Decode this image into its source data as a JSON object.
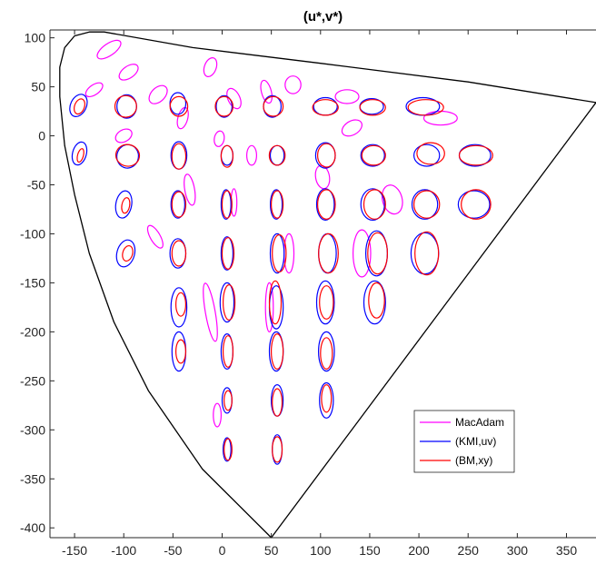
{
  "chart_data": {
    "type": "scatter",
    "title": "(u*,v*)",
    "xlabel": "",
    "ylabel": "",
    "xlim": [
      -175,
      380
    ],
    "ylim": [
      -410,
      108
    ],
    "xticks": [
      -150,
      -100,
      -50,
      0,
      50,
      100,
      150,
      200,
      250,
      300,
      350
    ],
    "yticks": [
      100,
      50,
      0,
      -50,
      -100,
      -150,
      -200,
      -250,
      -300,
      -350,
      -400
    ],
    "grid": false,
    "legend": {
      "placement": "bottom-right",
      "entries": [
        "MacAdam",
        "(KMI,uv)",
        "(BM,xy)"
      ]
    },
    "colors": {
      "MacAdam": "#ff00ff",
      "(KMI,uv)": "#0000ff",
      "(BM,xy)": "#ff0000",
      "boundary": "#000000"
    },
    "boundary": [
      [
        50,
        -410
      ],
      [
        -20,
        -340
      ],
      [
        -75,
        -260
      ],
      [
        -110,
        -190
      ],
      [
        -135,
        -120
      ],
      [
        -150,
        -60
      ],
      [
        -160,
        -10
      ],
      [
        -165,
        40
      ],
      [
        -165,
        70
      ],
      [
        -160,
        90
      ],
      [
        -150,
        102
      ],
      [
        -135,
        106
      ],
      [
        -120,
        106
      ],
      [
        -30,
        90
      ],
      [
        100,
        74
      ],
      [
        250,
        55
      ],
      [
        380,
        34
      ],
      [
        50,
        -410
      ]
    ],
    "series": [
      {
        "name": "MacAdam",
        "ellipses": [
          [
            -115,
            88,
            14,
            6,
            35
          ],
          [
            -95,
            65,
            11,
            6,
            35
          ],
          [
            -130,
            47,
            10,
            5,
            35
          ],
          [
            -65,
            42,
            11,
            7,
            45
          ],
          [
            -40,
            18,
            5,
            11,
            -15
          ],
          [
            -12,
            70,
            6,
            10,
            -20
          ],
          [
            12,
            38,
            6,
            11,
            25
          ],
          [
            45,
            45,
            5,
            12,
            15
          ],
          [
            72,
            52,
            8,
            9,
            0
          ],
          [
            127,
            40,
            12,
            7,
            0
          ],
          [
            132,
            8,
            11,
            7,
            30
          ],
          [
            222,
            18,
            17,
            7,
            0
          ],
          [
            -100,
            0,
            9,
            6,
            30
          ],
          [
            -3,
            -3,
            5,
            8,
            -10
          ],
          [
            30,
            -20,
            5,
            10,
            0
          ],
          [
            102,
            -42,
            7,
            12,
            10
          ],
          [
            173,
            -65,
            10,
            15,
            15
          ],
          [
            -33,
            -55,
            5,
            16,
            10
          ],
          [
            -68,
            -103,
            5,
            13,
            30
          ],
          [
            12,
            -68,
            3,
            14,
            0
          ],
          [
            68,
            -120,
            5,
            20,
            0
          ],
          [
            142,
            -120,
            9,
            24,
            0
          ],
          [
            -12,
            -180,
            5,
            30,
            10
          ],
          [
            48,
            -175,
            4,
            25,
            0
          ],
          [
            -5,
            -285,
            4,
            12,
            0
          ]
        ]
      },
      {
        "name": "(KMI,uv)",
        "ellipses": [
          [
            -146,
            31,
            8,
            12,
            -25
          ],
          [
            -145,
            -18,
            7,
            12,
            -15
          ],
          [
            -97,
            30,
            10,
            12,
            0
          ],
          [
            -96,
            -21,
            11,
            12,
            -10
          ],
          [
            -45,
            33,
            8,
            11,
            0
          ],
          [
            -44,
            -20,
            8,
            14,
            0
          ],
          [
            2,
            30,
            8,
            11,
            0
          ],
          [
            5,
            -20,
            6,
            10,
            0
          ],
          [
            51,
            30,
            9,
            11,
            0
          ],
          [
            56,
            -20,
            7,
            10,
            0
          ],
          [
            105,
            30,
            12,
            9,
            0
          ],
          [
            105,
            -20,
            10,
            13,
            0
          ],
          [
            152,
            30,
            12,
            8,
            0
          ],
          [
            153,
            -20,
            12,
            11,
            0
          ],
          [
            204,
            30,
            17,
            9,
            0
          ],
          [
            208,
            -20,
            13,
            11,
            0
          ],
          [
            257,
            -20,
            16,
            11,
            0
          ],
          [
            -100,
            -70,
            8,
            14,
            -10
          ],
          [
            -45,
            -70,
            7,
            14,
            0
          ],
          [
            4,
            -70,
            5,
            15,
            0
          ],
          [
            55,
            -70,
            6,
            15,
            0
          ],
          [
            105,
            -70,
            9,
            16,
            0
          ],
          [
            153,
            -70,
            12,
            16,
            0
          ],
          [
            206,
            -70,
            13,
            15,
            0
          ],
          [
            256,
            -70,
            16,
            14,
            0
          ],
          [
            -98,
            -120,
            9,
            14,
            -15
          ],
          [
            -45,
            -120,
            8,
            15,
            0
          ],
          [
            5,
            -120,
            6,
            17,
            0
          ],
          [
            56,
            -120,
            7,
            20,
            0
          ],
          [
            107,
            -120,
            9,
            20,
            0
          ],
          [
            157,
            -120,
            11,
            23,
            0
          ],
          [
            206,
            -120,
            14,
            21,
            0
          ],
          [
            -44,
            -175,
            8,
            20,
            0
          ],
          [
            5,
            -170,
            7,
            20,
            0
          ],
          [
            55,
            -175,
            7,
            22,
            0
          ],
          [
            105,
            -170,
            9,
            22,
            0
          ],
          [
            155,
            -170,
            11,
            22,
            0
          ],
          [
            -44,
            -220,
            7,
            20,
            0
          ],
          [
            5,
            -220,
            6,
            18,
            0
          ],
          [
            55,
            -220,
            7,
            20,
            0
          ],
          [
            106,
            -220,
            8,
            20,
            0
          ],
          [
            5,
            -270,
            5,
            13,
            0
          ],
          [
            56,
            -270,
            6,
            16,
            0
          ],
          [
            106,
            -270,
            7,
            18,
            0
          ],
          [
            5,
            -320,
            4,
            12,
            0
          ],
          [
            56,
            -320,
            5,
            15,
            0
          ]
        ]
      },
      {
        "name": "(BM,xy)",
        "ellipses": [
          [
            -145,
            30,
            5,
            8,
            -20
          ],
          [
            -144,
            -20,
            3,
            7,
            -15
          ],
          [
            -98,
            30,
            11,
            11,
            0
          ],
          [
            -96,
            -20,
            12,
            11,
            -10
          ],
          [
            -44,
            30,
            9,
            10,
            0
          ],
          [
            -44,
            -21,
            7,
            13,
            0
          ],
          [
            2,
            30,
            9,
            10,
            0
          ],
          [
            5,
            -21,
            6,
            11,
            0
          ],
          [
            52,
            30,
            10,
            10,
            0
          ],
          [
            56,
            -20,
            8,
            10,
            0
          ],
          [
            105,
            29,
            13,
            8,
            0
          ],
          [
            106,
            -20,
            9,
            12,
            0
          ],
          [
            153,
            29,
            13,
            8,
            0
          ],
          [
            154,
            -20,
            12,
            10,
            0
          ],
          [
            207,
            29,
            18,
            8,
            0
          ],
          [
            212,
            -18,
            14,
            11,
            0
          ],
          [
            258,
            -20,
            17,
            10,
            0
          ],
          [
            -98,
            -71,
            4,
            8,
            -10
          ],
          [
            -44,
            -70,
            7,
            13,
            0
          ],
          [
            5,
            -70,
            5,
            14,
            0
          ],
          [
            56,
            -70,
            6,
            14,
            0
          ],
          [
            106,
            -70,
            9,
            15,
            0
          ],
          [
            155,
            -70,
            11,
            15,
            0
          ],
          [
            208,
            -70,
            13,
            14,
            0
          ],
          [
            258,
            -70,
            15,
            15,
            0
          ],
          [
            -96,
            -120,
            5,
            8,
            -15
          ],
          [
            -44,
            -120,
            7,
            13,
            0
          ],
          [
            6,
            -120,
            6,
            16,
            0
          ],
          [
            58,
            -120,
            7,
            19,
            0
          ],
          [
            108,
            -120,
            10,
            20,
            0
          ],
          [
            158,
            -120,
            10,
            21,
            0
          ],
          [
            208,
            -120,
            12,
            22,
            0
          ],
          [
            -42,
            -172,
            5,
            12,
            0
          ],
          [
            7,
            -170,
            6,
            18,
            0
          ],
          [
            54,
            -170,
            6,
            22,
            0
          ],
          [
            106,
            -170,
            7,
            17,
            0
          ],
          [
            157,
            -168,
            8,
            18,
            0
          ],
          [
            -42,
            -220,
            5,
            12,
            0
          ],
          [
            6,
            -220,
            5,
            16,
            0
          ],
          [
            56,
            -220,
            6,
            18,
            0
          ],
          [
            106,
            -222,
            6,
            16,
            0
          ],
          [
            6,
            -270,
            4,
            10,
            0
          ],
          [
            56,
            -272,
            5,
            14,
            0
          ],
          [
            106,
            -268,
            5,
            14,
            0
          ],
          [
            6,
            -320,
            4,
            11,
            0
          ],
          [
            56,
            -320,
            5,
            13,
            0
          ]
        ]
      }
    ]
  }
}
